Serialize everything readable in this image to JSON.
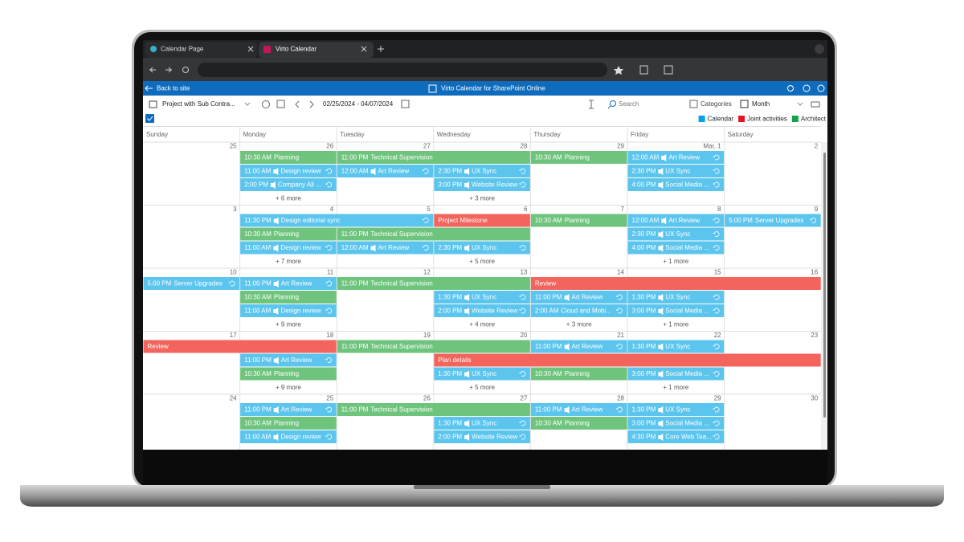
{
  "browser": {
    "tabs": [
      "Calendar Page",
      "Virto Calendar"
    ]
  },
  "app": {
    "back": "Back to site",
    "title": "Virto Calendar for SharePoint Online"
  },
  "toolbar": {
    "calendar": "Project with Sub Contra...",
    "range": "02/25/2024 - 04/07/2024",
    "search": "Search",
    "categories": "Categories",
    "view": "Month"
  },
  "legend": [
    {
      "name": "Calendar",
      "color": "#00a2e8",
      "event_color": "#5cc5ee"
    },
    {
      "name": "Joint activities",
      "color": "#e81123",
      "event_color": "#f2645c"
    },
    {
      "name": "Architect",
      "color": "#12a44a",
      "event_color": "#6fc47d"
    }
  ],
  "days": [
    "Sunday",
    "Monday",
    "Tuesday",
    "Wednesday",
    "Thursday",
    "Friday",
    "Saturday"
  ],
  "weeks": [
    {
      "dates": [
        "25",
        "26",
        "27",
        "28",
        "29",
        "Mar, 1",
        "2"
      ],
      "rows": [
        [
          {
            "day": 1,
            "span": 1,
            "category": 2,
            "time": "10:30 AM",
            "title": "Planning"
          },
          {
            "day": 2,
            "span": 2,
            "category": 2,
            "time": "11:00 PM",
            "title": "Technical Supervision"
          },
          {
            "day": 4,
            "span": 1,
            "category": 2,
            "time": "10:30 AM",
            "title": "Planning"
          },
          {
            "day": 5,
            "span": 1,
            "category": 0,
            "time": "12:00 AM",
            "title": "Art Review",
            "teams": true,
            "recurring": true
          }
        ],
        [
          {
            "day": 1,
            "span": 1,
            "category": 0,
            "time": "11:00 AM",
            "title": "Design review",
            "teams": true,
            "recurring": true
          },
          {
            "day": 2,
            "span": 1,
            "category": 0,
            "time": "12:00 AM",
            "title": "Art Review",
            "teams": true,
            "recurring": true
          },
          {
            "day": 3,
            "span": 1,
            "category": 0,
            "time": "2:30 PM",
            "title": "UX Sync",
            "teams": true,
            "recurring": true
          },
          {
            "day": 5,
            "span": 1,
            "category": 0,
            "time": "2:30 PM",
            "title": "UX Sync",
            "teams": true,
            "recurring": true
          }
        ],
        [
          {
            "day": 1,
            "span": 1,
            "category": 0,
            "time": "2:00 PM",
            "title": "Company All ...",
            "teams": true,
            "recurring": true
          },
          {
            "day": 3,
            "span": 1,
            "category": 0,
            "time": "3:00 PM",
            "title": "Website Review",
            "teams": true,
            "recurring": true
          },
          {
            "day": 5,
            "span": 1,
            "category": 0,
            "time": "4:00 PM",
            "title": "Social Media ...",
            "teams": true,
            "recurring": true
          }
        ]
      ],
      "more": [
        {
          "day": 1,
          "text": "+ 6 more"
        },
        {
          "day": 3,
          "text": "+ 3 more"
        }
      ]
    },
    {
      "dates": [
        "3",
        "4",
        "5",
        "6",
        "7",
        "8",
        "9"
      ],
      "rows": [
        [
          {
            "day": 1,
            "span": 2,
            "category": 0,
            "time": "11:30 PM",
            "title": "Design editorial sync",
            "teams": true,
            "recurring": true
          },
          {
            "day": 3,
            "span": 1,
            "category": 1,
            "title": "Project Milestone"
          },
          {
            "day": 4,
            "span": 1,
            "category": 2,
            "time": "10:30 AM",
            "title": "Planning"
          },
          {
            "day": 5,
            "span": 1,
            "category": 0,
            "time": "12:00 AM",
            "title": "Art Review",
            "teams": true,
            "recurring": true
          },
          {
            "day": 6,
            "span": 1,
            "category": 0,
            "time": "5:00 PM",
            "title": "Server Upgrades",
            "recurring": true
          }
        ],
        [
          {
            "day": 1,
            "span": 1,
            "category": 2,
            "time": "10:30 AM",
            "title": "Planning"
          },
          {
            "day": 2,
            "span": 2,
            "category": 2,
            "time": "11:00 PM",
            "title": "Technical Supervision"
          },
          {
            "day": 5,
            "span": 1,
            "category": 0,
            "time": "2:30 PM",
            "title": "UX Sync",
            "teams": true,
            "recurring": true
          }
        ],
        [
          {
            "day": 1,
            "span": 1,
            "category": 0,
            "time": "11:00 AM",
            "title": "Design review",
            "teams": true,
            "recurring": true
          },
          {
            "day": 2,
            "span": 1,
            "category": 0,
            "time": "12:00 AM",
            "title": "Art Review",
            "teams": true,
            "recurring": true
          },
          {
            "day": 3,
            "span": 1,
            "category": 0,
            "time": "2:30 PM",
            "title": "UX Sync",
            "teams": true,
            "recurring": true
          },
          {
            "day": 5,
            "span": 1,
            "category": 0,
            "time": "4:00 PM",
            "title": "Social Media ...",
            "teams": true,
            "recurring": true
          }
        ]
      ],
      "more": [
        {
          "day": 1,
          "text": "+ 7 more"
        },
        {
          "day": 3,
          "text": "+ 5 more"
        },
        {
          "day": 5,
          "text": "+ 1 more"
        }
      ]
    },
    {
      "dates": [
        "10",
        "11",
        "12",
        "13",
        "14",
        "15",
        "16"
      ],
      "rows": [
        [
          {
            "day": 0,
            "span": 1,
            "category": 0,
            "time": "5:00 PM",
            "title": "Server Upgrades",
            "recurring": true
          },
          {
            "day": 1,
            "span": 1,
            "category": 0,
            "time": "11:00 PM",
            "title": "Art Review",
            "teams": true,
            "recurring": true
          },
          {
            "day": 2,
            "span": 2,
            "category": 2,
            "time": "11:00 PM",
            "title": "Technical Supervision"
          },
          {
            "day": 4,
            "span": 3,
            "category": 1,
            "title": "Review"
          }
        ],
        [
          {
            "day": 1,
            "span": 1,
            "category": 2,
            "time": "10:30 AM",
            "title": "Planning"
          },
          {
            "day": 3,
            "span": 1,
            "category": 0,
            "time": "1:30 PM",
            "title": "UX Sync",
            "teams": true,
            "recurring": true
          },
          {
            "day": 4,
            "span": 1,
            "category": 0,
            "time": "11:00 PM",
            "title": "Art Review",
            "teams": true,
            "recurring": true
          },
          {
            "day": 5,
            "span": 1,
            "category": 0,
            "time": "1:30 PM",
            "title": "UX Sync",
            "teams": true,
            "recurring": true
          }
        ],
        [
          {
            "day": 1,
            "span": 1,
            "category": 0,
            "time": "11:00 AM",
            "title": "Design review",
            "teams": true,
            "recurring": true
          },
          {
            "day": 3,
            "span": 1,
            "category": 0,
            "time": "2:00 PM",
            "title": "Website Review",
            "teams": true,
            "recurring": true
          },
          {
            "day": 4,
            "span": 1,
            "category": 0,
            "time": "2:00 AM",
            "title": "Cloud and Mobi...",
            "recurring": true
          },
          {
            "day": 5,
            "span": 1,
            "category": 0,
            "time": "3:00 PM",
            "title": "Social Media ...",
            "teams": true,
            "recurring": true
          }
        ]
      ],
      "more": [
        {
          "day": 1,
          "text": "+ 9 more"
        },
        {
          "day": 3,
          "text": "+ 4 more"
        },
        {
          "day": 4,
          "text": "+ 3 more"
        },
        {
          "day": 5,
          "text": "+ 1 more"
        }
      ]
    },
    {
      "dates": [
        "17",
        "18",
        "19",
        "20",
        "21",
        "22",
        "23"
      ],
      "rows": [
        [
          {
            "day": 0,
            "span": 2,
            "category": 1,
            "title": "Review"
          },
          {
            "day": 2,
            "span": 2,
            "category": 2,
            "time": "11:00 PM",
            "title": "Technical Supervision"
          },
          {
            "day": 4,
            "span": 1,
            "category": 0,
            "time": "11:00 PM",
            "title": "Art Review",
            "teams": true,
            "recurring": true
          },
          {
            "day": 5,
            "span": 1,
            "category": 0,
            "time": "1:30 PM",
            "title": "UX Sync",
            "teams": true,
            "recurring": true
          }
        ],
        [
          {
            "day": 1,
            "span": 1,
            "category": 0,
            "time": "11:00 PM",
            "title": "Art Review",
            "teams": true,
            "recurring": true
          },
          {
            "day": 3,
            "span": 4,
            "category": 1,
            "title": "Plan details"
          }
        ],
        [
          {
            "day": 1,
            "span": 1,
            "category": 2,
            "time": "10:30 AM",
            "title": "Planning"
          },
          {
            "day": 3,
            "span": 1,
            "category": 0,
            "time": "1:30 PM",
            "title": "UX Sync",
            "teams": true,
            "recurring": true
          },
          {
            "day": 4,
            "span": 1,
            "category": 2,
            "time": "10:30 AM",
            "title": "Planning"
          },
          {
            "day": 5,
            "span": 1,
            "category": 0,
            "time": "3:00 PM",
            "title": "Social Media ...",
            "teams": true,
            "recurring": true
          }
        ]
      ],
      "more": [
        {
          "day": 1,
          "text": "+ 9 more"
        },
        {
          "day": 3,
          "text": "+ 5 more"
        },
        {
          "day": 5,
          "text": "+ 1 more"
        }
      ]
    },
    {
      "dates": [
        "24",
        "25",
        "26",
        "27",
        "28",
        "29",
        "30"
      ],
      "rows": [
        [
          {
            "day": 1,
            "span": 1,
            "category": 0,
            "time": "11:00 PM",
            "title": "Art Review",
            "teams": true,
            "recurring": true
          },
          {
            "day": 2,
            "span": 2,
            "category": 2,
            "time": "11:00 PM",
            "title": "Technical Supervision"
          },
          {
            "day": 4,
            "span": 1,
            "category": 0,
            "time": "11:00 PM",
            "title": "Art Review",
            "teams": true,
            "recurring": true
          },
          {
            "day": 5,
            "span": 1,
            "category": 0,
            "time": "1:30 PM",
            "title": "UX Sync",
            "teams": true,
            "recurring": true
          }
        ],
        [
          {
            "day": 1,
            "span": 1,
            "category": 2,
            "time": "10:30 AM",
            "title": "Planning"
          },
          {
            "day": 3,
            "span": 1,
            "category": 0,
            "time": "1:30 PM",
            "title": "UX Sync",
            "teams": true,
            "recurring": true
          },
          {
            "day": 4,
            "span": 1,
            "category": 2,
            "time": "10:30 AM",
            "title": "Planning"
          },
          {
            "day": 5,
            "span": 1,
            "category": 0,
            "time": "3:00 PM",
            "title": "Social Media ...",
            "teams": true,
            "recurring": true
          }
        ],
        [
          {
            "day": 1,
            "span": 1,
            "category": 0,
            "time": "11:00 AM",
            "title": "Design review",
            "teams": true,
            "recurring": true
          },
          {
            "day": 3,
            "span": 1,
            "category": 0,
            "time": "2:00 PM",
            "title": "Website Review",
            "teams": true,
            "recurring": true
          },
          {
            "day": 5,
            "span": 1,
            "category": 0,
            "time": "4:30 PM",
            "title": "Core Web Tea...",
            "teams": true,
            "recurring": true
          }
        ]
      ],
      "more": []
    }
  ]
}
